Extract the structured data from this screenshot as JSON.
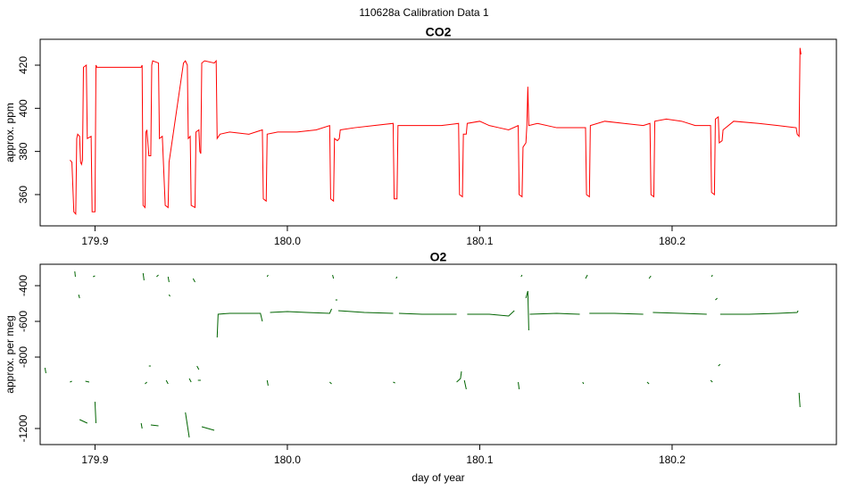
{
  "title": "110628a   Calibration Data 1",
  "chart_data": [
    {
      "type": "line",
      "title": "CO2",
      "ylabel": "approx. ppm",
      "xlim": [
        179.8715,
        180.2854
      ],
      "ylim": [
        345.5,
        432
      ],
      "xticks": [
        179.9,
        {
          "value": 180,
          "label": "180.0"
        },
        180.1,
        180.2
      ],
      "yticks": [
        360,
        380,
        400,
        420
      ],
      "series": [
        {
          "name": "CO2",
          "color": "#ff0000",
          "x": [
            179.887,
            179.888,
            179.889,
            179.89,
            179.8905,
            179.891,
            179.892,
            179.8925,
            179.893,
            179.8935,
            179.894,
            179.8955,
            179.896,
            179.898,
            179.8985,
            179.9,
            179.9005,
            179.901,
            179.924,
            179.9245,
            179.925,
            179.926,
            179.9265,
            179.927,
            179.928,
            179.929,
            179.9295,
            179.93,
            179.933,
            179.9335,
            179.935,
            179.9365,
            179.938,
            179.9385,
            179.939,
            179.946,
            179.947,
            179.948,
            179.9485,
            179.9495,
            179.95,
            179.952,
            179.9525,
            179.954,
            179.9545,
            179.955,
            179.9555,
            179.957,
            179.962,
            179.963,
            179.9635,
            179.965,
            179.97,
            179.98,
            179.987,
            179.9875,
            179.989,
            179.9895,
            179.995,
            180.005,
            180.015,
            180.022,
            180.0225,
            180.024,
            180.0245,
            180.026,
            180.027,
            180.0275,
            180.035,
            180.045,
            180.055,
            180.0555,
            180.057,
            180.0575,
            180.07,
            180.08,
            180.089,
            180.0895,
            180.091,
            180.0915,
            180.093,
            180.0935,
            180.1,
            180.105,
            180.11,
            180.115,
            180.12,
            180.1205,
            180.122,
            180.1225,
            180.124,
            180.1245,
            180.125,
            180.1255,
            180.13,
            180.14,
            180.15,
            180.155,
            180.1555,
            180.157,
            180.1575,
            180.165,
            180.175,
            180.185,
            180.1885,
            180.189,
            180.1905,
            180.191,
            180.197,
            180.205,
            180.212,
            180.22,
            180.2205,
            180.222,
            180.2225,
            180.224,
            180.2245,
            180.226,
            180.2265,
            180.232,
            180.245,
            180.255,
            180.2645,
            180.265,
            180.266,
            180.2665,
            180.267
          ],
          "values": [
            376,
            375,
            352,
            351,
            386,
            388,
            387,
            375,
            374,
            376,
            419,
            420,
            386,
            387,
            352,
            352,
            420,
            419,
            419,
            420,
            355,
            354,
            389,
            390,
            378,
            378,
            420,
            422,
            421,
            386,
            387,
            355,
            354,
            375,
            378,
            421,
            422,
            420,
            386,
            387,
            355,
            354,
            389,
            390,
            380,
            379,
            421,
            422,
            421,
            422,
            386,
            388,
            389,
            388,
            390,
            358,
            357,
            388,
            389,
            389,
            390,
            392,
            358,
            357,
            386,
            385,
            386,
            390,
            391,
            392,
            393,
            358,
            358,
            392,
            392,
            392,
            393,
            360,
            359,
            388,
            388,
            393,
            394,
            392,
            391,
            390,
            392,
            360,
            359,
            382,
            384,
            392,
            410,
            392,
            393,
            391,
            391,
            391,
            360,
            359,
            392,
            394,
            393,
            392,
            393,
            360,
            359,
            394,
            395,
            394,
            392,
            392,
            361,
            360,
            395,
            396,
            384,
            385,
            390,
            394,
            393,
            392,
            391,
            388,
            387,
            428,
            425
          ]
        }
      ]
    },
    {
      "type": "line",
      "title": "O2",
      "ylabel": "approx. per meg",
      "xlabel": "day of year",
      "xlim": [
        179.8715,
        180.2854
      ],
      "ylim": [
        -1290,
        -280
      ],
      "xticks": [
        179.9,
        {
          "value": 180,
          "label": "180.0"
        },
        180.1,
        180.2
      ],
      "yticks": [
        -1200,
        -800,
        -600,
        -400
      ],
      "series": [
        {
          "name": "O2",
          "color": "#006400",
          "x": [
            179.874,
            179.8745,
            null,
            179.887,
            179.888,
            null,
            179.8895,
            179.8898,
            null,
            179.8915,
            179.892,
            null,
            179.892,
            179.896,
            null,
            179.895,
            179.897,
            null,
            179.899,
            179.9,
            null,
            179.9,
            179.9005,
            null,
            179.924,
            179.9245,
            null,
            179.925,
            179.9255,
            null,
            179.926,
            179.927,
            null,
            179.928,
            179.929,
            null,
            179.929,
            179.933,
            null,
            179.932,
            179.933,
            null,
            179.937,
            179.938,
            null,
            179.938,
            179.9385,
            null,
            179.9385,
            179.939,
            null,
            179.947,
            179.949,
            null,
            179.949,
            179.95,
            null,
            179.951,
            179.952,
            null,
            179.953,
            179.954,
            null,
            179.9535,
            179.955,
            null,
            179.9555,
            179.962,
            null,
            179.9635,
            179.964,
            179.97,
            179.98,
            179.986,
            179.987,
            null,
            179.9895,
            179.99,
            null,
            179.9895,
            179.99,
            null,
            179.991,
            180.0,
            180.01,
            180.022,
            180.023,
            null,
            180.022,
            180.023,
            null,
            180.0235,
            180.024,
            null,
            180.025,
            180.026,
            null,
            180.0265,
            180.04,
            180.055,
            null,
            180.055,
            180.056,
            null,
            180.0565,
            180.057,
            null,
            180.058,
            180.07,
            180.088,
            null,
            180.088,
            180.09,
            180.0905,
            null,
            180.092,
            180.093,
            null,
            180.0935,
            180.105,
            180.115,
            180.118,
            null,
            180.12,
            180.1205,
            null,
            180.1215,
            180.122,
            null,
            180.124,
            180.125,
            180.1255,
            null,
            180.126,
            180.14,
            180.152,
            null,
            180.1535,
            180.154,
            null,
            180.155,
            180.156,
            null,
            180.157,
            180.17,
            180.185,
            null,
            180.187,
            180.188,
            null,
            180.188,
            180.189,
            null,
            180.19,
            180.205,
            180.218,
            null,
            180.22,
            180.221,
            null,
            180.2205,
            180.221,
            null,
            180.2225,
            180.2235,
            null,
            180.224,
            180.225,
            null,
            180.225,
            180.24,
            180.255,
            180.265,
            180.2655,
            null,
            180.266,
            180.2665
          ],
          "values": [
            -860,
            -890,
            null,
            -940,
            -935,
            null,
            -320,
            -350,
            null,
            -450,
            -470,
            null,
            -1150,
            -1170,
            null,
            -935,
            -940,
            null,
            -350,
            -345,
            null,
            -1050,
            -1170,
            null,
            -1170,
            -1200,
            null,
            -330,
            -370,
            null,
            -950,
            -940,
            null,
            -850,
            -850,
            null,
            -1180,
            -1185,
            null,
            -350,
            -340,
            null,
            -930,
            -950,
            null,
            -350,
            -380,
            null,
            -450,
            -460,
            null,
            -1110,
            -1250,
            null,
            -920,
            -940,
            null,
            -360,
            -380,
            null,
            -850,
            -870,
            null,
            -930,
            -930,
            null,
            -1190,
            -1210,
            null,
            -690,
            -560,
            -555,
            -555,
            -555,
            -600,
            null,
            -350,
            -340,
            null,
            -930,
            -960,
            null,
            -550,
            -545,
            -550,
            -555,
            -530,
            null,
            -940,
            -950,
            null,
            -340,
            -360,
            null,
            -480,
            -480,
            null,
            -540,
            -550,
            -555,
            null,
            -940,
            -945,
            null,
            -360,
            -350,
            null,
            -555,
            -560,
            -560,
            null,
            -940,
            -920,
            -880,
            null,
            -930,
            -980,
            null,
            -560,
            -560,
            -570,
            -540,
            null,
            -940,
            -980,
            null,
            -350,
            -340,
            null,
            -470,
            -430,
            -650,
            null,
            -560,
            -555,
            -560,
            null,
            -940,
            -950,
            null,
            -360,
            -340,
            null,
            -555,
            -555,
            -560,
            null,
            -940,
            -950,
            null,
            -360,
            -345,
            null,
            -550,
            -555,
            -560,
            null,
            -930,
            -940,
            null,
            -350,
            -340,
            null,
            -480,
            -470,
            null,
            -850,
            -840,
            null,
            -560,
            -560,
            -555,
            -550,
            -540,
            null,
            -1000,
            -1080
          ]
        }
      ]
    }
  ]
}
